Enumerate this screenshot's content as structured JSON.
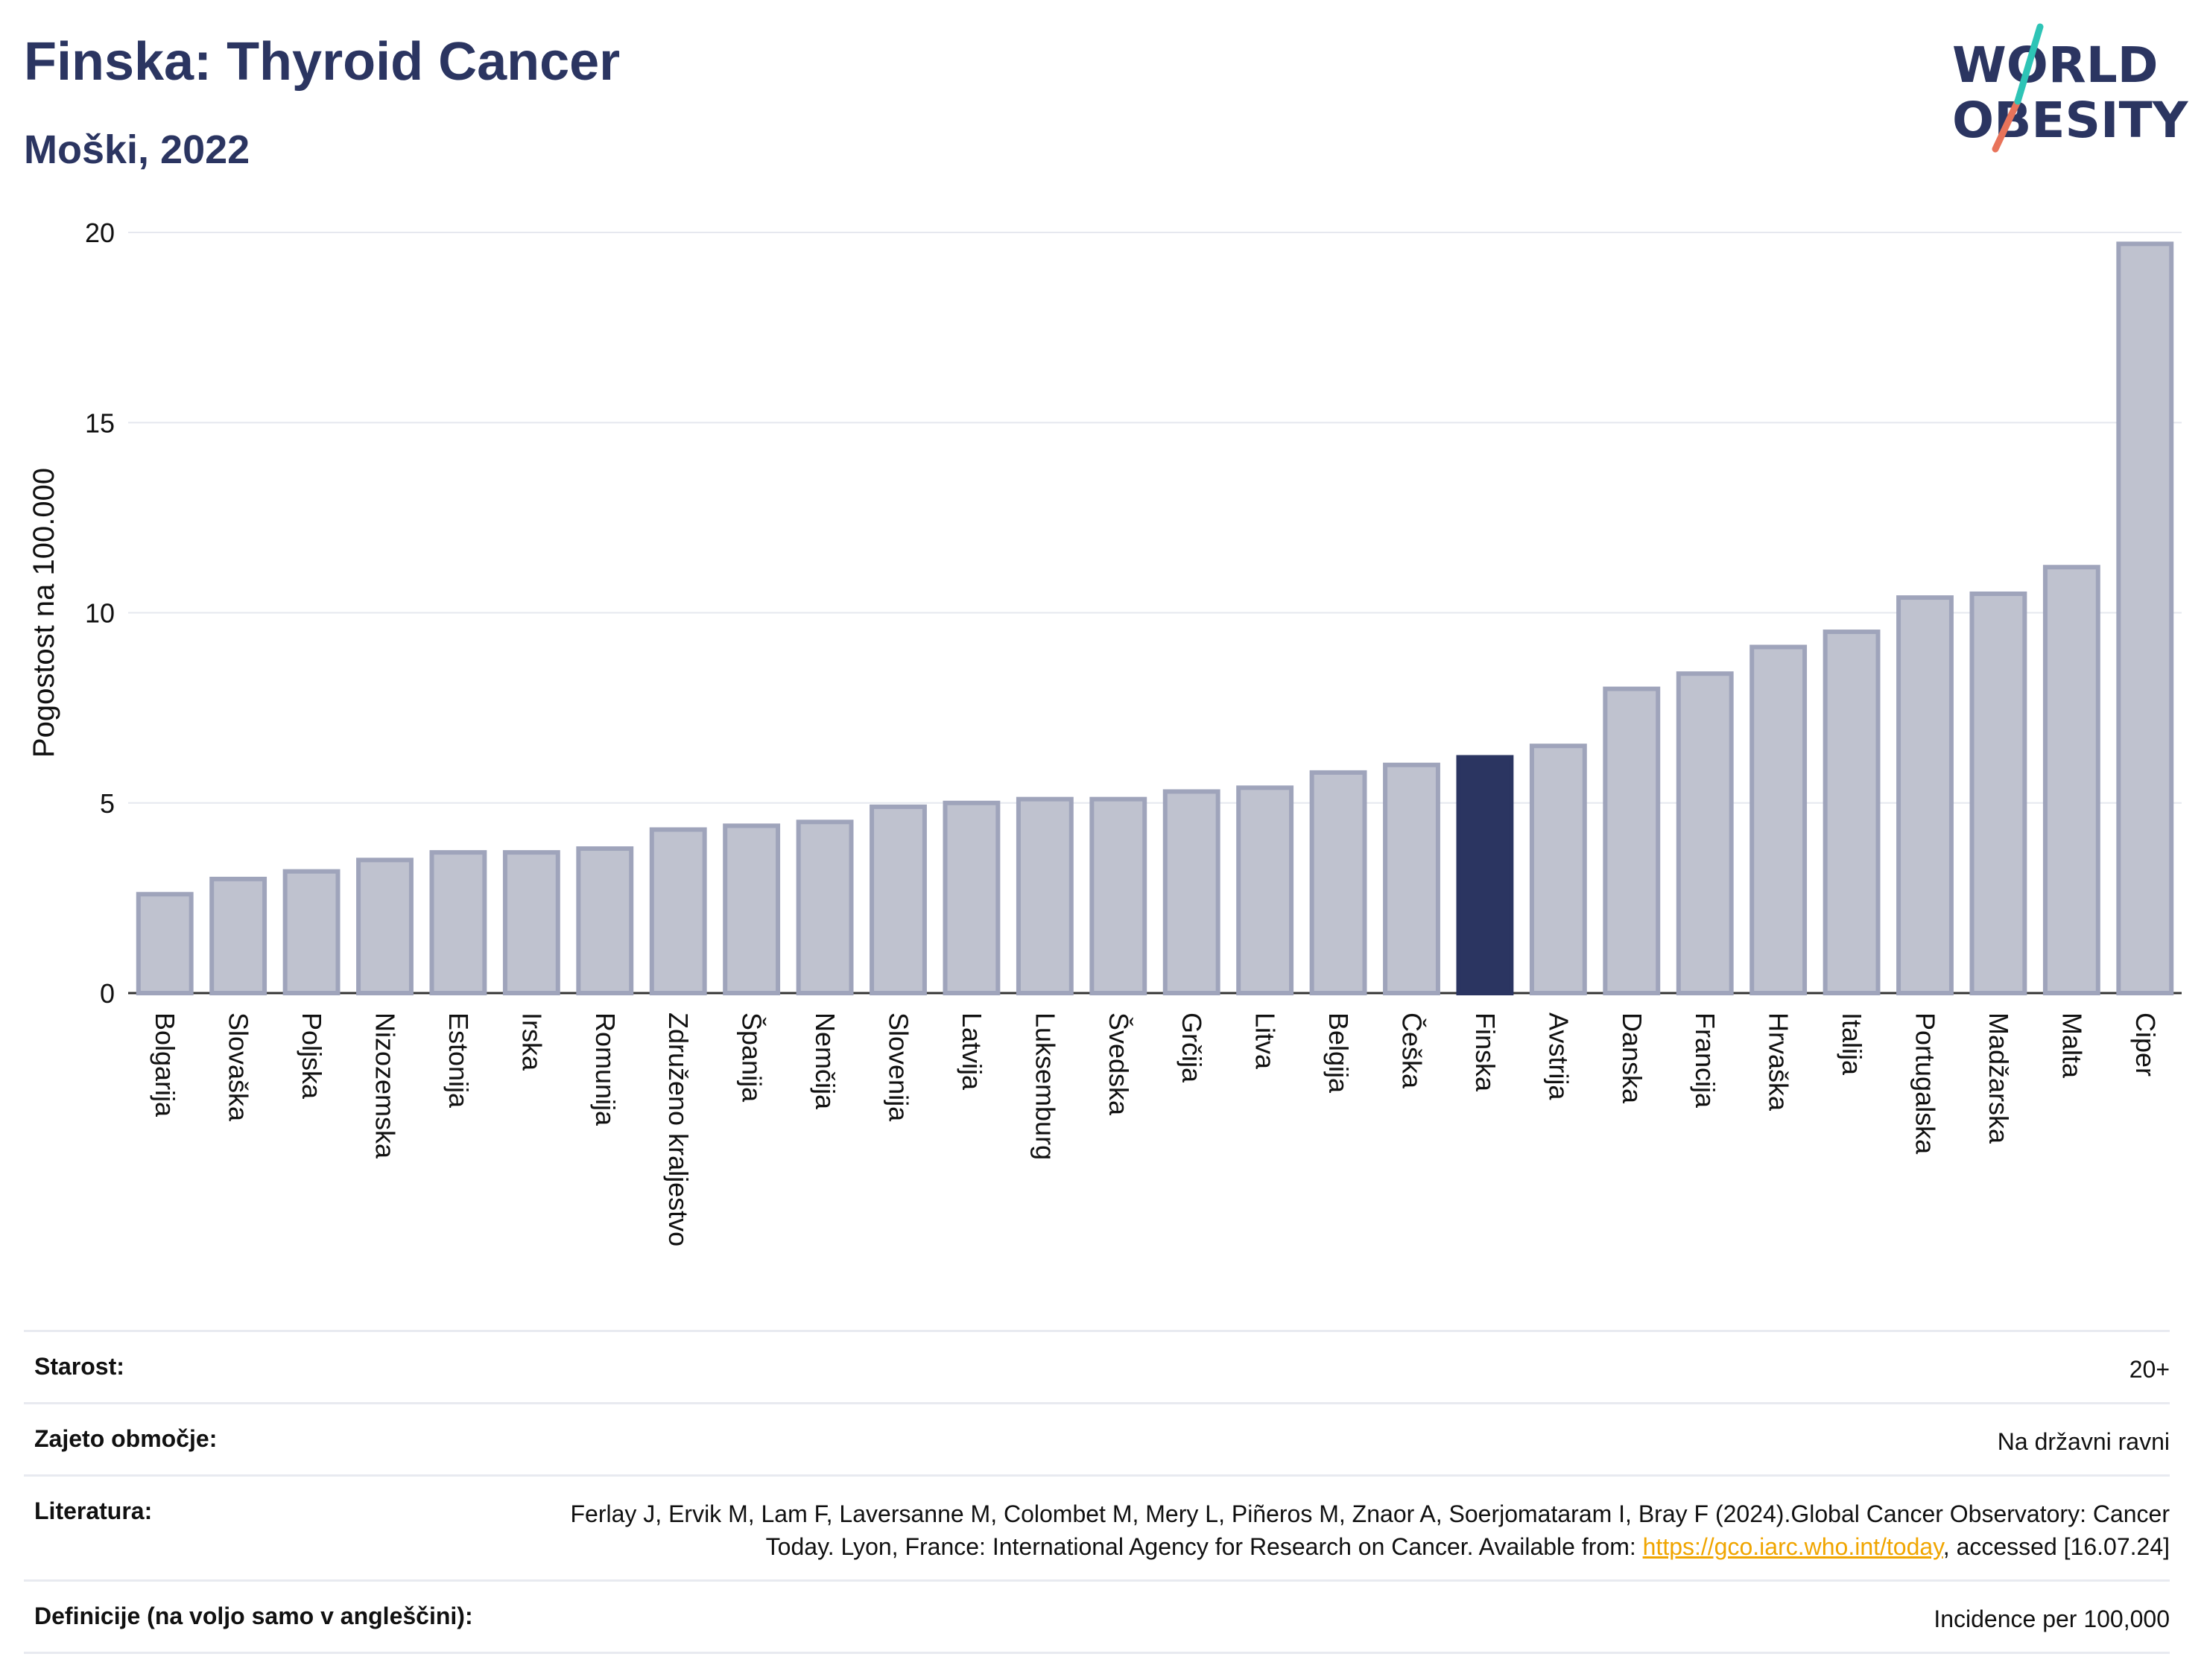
{
  "header": {
    "title": "Finska: Thyroid Cancer",
    "subtitle": "Moški, 2022",
    "logo_line1": "WORLD",
    "logo_line2": "OBESITY"
  },
  "colors": {
    "title": "#2b3561",
    "bar": "#bfc2cf",
    "bar_stroke": "#9fa4bb",
    "highlight": "#2b3561",
    "logo_slash_top": "#2ec4b6",
    "logo_slash_bottom": "#e8735a",
    "link": "#f0a500"
  },
  "chart_data": {
    "type": "bar",
    "title": "Finska: Thyroid Cancer",
    "subtitle": "Moški, 2022",
    "ylabel": "Pogostost na 100.000",
    "xlabel": "",
    "ylim": [
      0,
      20
    ],
    "yticks": [
      0,
      5,
      10,
      15,
      20
    ],
    "grid": true,
    "highlight": "Finska",
    "categories": [
      "Bolgarija",
      "Slovaška",
      "Poljska",
      "Nizozemska",
      "Estonija",
      "Irska",
      "Romunija",
      "Združeno kraljestvo",
      "Španija",
      "Nemčija",
      "Slovenija",
      "Latvija",
      "Luksemburg",
      "Švedska",
      "Grčija",
      "Litva",
      "Belgija",
      "Češka",
      "Finska",
      "Avstrija",
      "Danska",
      "Francija",
      "Hrvaška",
      "Italija",
      "Portugalska",
      "Madžarska",
      "Malta",
      "Ciper"
    ],
    "values": [
      2.6,
      3.0,
      3.2,
      3.5,
      3.7,
      3.7,
      3.8,
      4.3,
      4.4,
      4.5,
      4.9,
      5.0,
      5.1,
      5.1,
      5.3,
      5.4,
      5.8,
      6.0,
      6.2,
      6.5,
      8.0,
      8.4,
      9.1,
      9.5,
      10.4,
      10.5,
      11.2,
      19.7
    ]
  },
  "info": {
    "age_label": "Starost:",
    "age_value": "20+",
    "coverage_label": "Zajeto območje:",
    "coverage_value": "Na državni ravni",
    "refs_label": "Literatura:",
    "refs_text_1": "Ferlay J, Ervik M, Lam F, Laversanne M, Colombet M, Mery L, Piñeros M, Znaor A, Soerjomataram I, Bray F (2024).Global Cancer Observatory: Cancer Today. Lyon, France: International Agency for Research on Cancer. Available from: ",
    "refs_link": "https://gco.iarc.who.int/today",
    "refs_text_2": ", accessed [16.07.24]",
    "defs_label": "Definicije (na voljo samo v angleščini):",
    "defs_value": "Incidence per 100,000"
  }
}
